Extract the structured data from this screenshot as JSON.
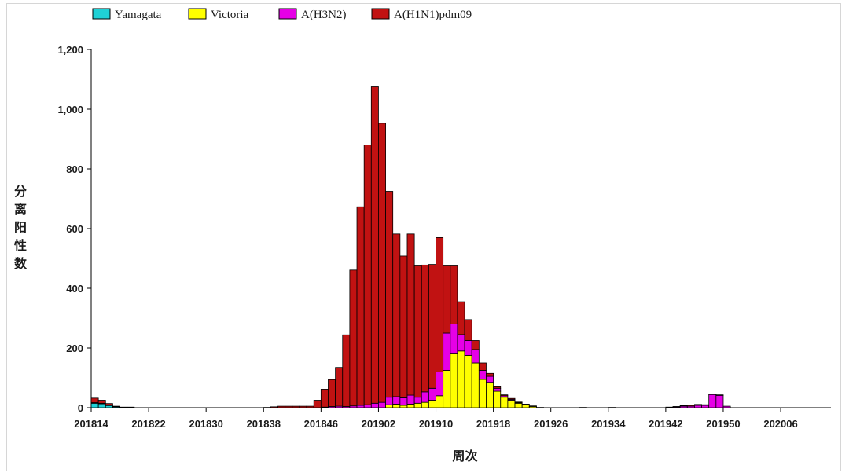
{
  "chart_data": {
    "type": "bar",
    "stacked": true,
    "xlabel": "周次",
    "ylabel": "分离阳性数",
    "ylim": [
      0,
      1200
    ],
    "yticks": [
      "0",
      "200",
      "400",
      "600",
      "800",
      "1,000",
      "1,200"
    ],
    "xtick_labels": [
      "201814",
      "201822",
      "201830",
      "201838",
      "201846",
      "201902",
      "201910",
      "201918",
      "201926",
      "201934",
      "201942",
      "201950",
      "202006"
    ],
    "legend_position": "top-left",
    "categories": [
      "201814",
      "201815",
      "201816",
      "201817",
      "201818",
      "201819",
      "201820",
      "201821",
      "201822",
      "201823",
      "201824",
      "201825",
      "201826",
      "201827",
      "201828",
      "201829",
      "201830",
      "201831",
      "201832",
      "201833",
      "201834",
      "201835",
      "201836",
      "201837",
      "201838",
      "201839",
      "201840",
      "201841",
      "201842",
      "201843",
      "201844",
      "201845",
      "201846",
      "201847",
      "201848",
      "201849",
      "201850",
      "201851",
      "201852",
      "201901",
      "201902",
      "201903",
      "201904",
      "201905",
      "201906",
      "201907",
      "201908",
      "201909",
      "201910",
      "201911",
      "201912",
      "201913",
      "201914",
      "201915",
      "201916",
      "201917",
      "201918",
      "201919",
      "201920",
      "201921",
      "201922",
      "201923",
      "201924",
      "201925",
      "201926",
      "201927",
      "201928",
      "201929",
      "201930",
      "201931",
      "201932",
      "201933",
      "201934",
      "201935",
      "201936",
      "201937",
      "201938",
      "201939",
      "201940",
      "201941",
      "201942",
      "201943",
      "201944",
      "201945",
      "201946",
      "201947",
      "201948",
      "201949",
      "201950",
      "201951",
      "201952",
      "202001",
      "202002",
      "202003",
      "202004",
      "202005",
      "202006",
      "202007",
      "202008",
      "202009",
      "202010",
      "202011",
      "202012"
    ],
    "series": [
      {
        "name": "Yamagata",
        "color": "#1fd1d6",
        "values": [
          15,
          14,
          8,
          3,
          1,
          1,
          0,
          0,
          0,
          0,
          0,
          0,
          0,
          0,
          0,
          0,
          0,
          0,
          0,
          0,
          0,
          0,
          0,
          0,
          0,
          0,
          0,
          0,
          0,
          0,
          0,
          0,
          0,
          0,
          0,
          0,
          0,
          0,
          0,
          0,
          0,
          0,
          0,
          0,
          0,
          0,
          0,
          0,
          0,
          0,
          0,
          0,
          0,
          0,
          0,
          0,
          0,
          0,
          0,
          0,
          0,
          0,
          0,
          0,
          0,
          0,
          0,
          0,
          0,
          0,
          0,
          0,
          0,
          0,
          0,
          0,
          0,
          0,
          0,
          0,
          0,
          0,
          0,
          0,
          0,
          0,
          0,
          0,
          0,
          0,
          0,
          0,
          0,
          0,
          0,
          0,
          0,
          0,
          0,
          0,
          0,
          0,
          0
        ]
      },
      {
        "name": "Victoria",
        "color": "#ffff00",
        "values": [
          0,
          0,
          0,
          0,
          0,
          0,
          0,
          0,
          0,
          0,
          0,
          0,
          0,
          0,
          0,
          0,
          0,
          0,
          0,
          0,
          0,
          0,
          0,
          0,
          0,
          0,
          0,
          0,
          0,
          0,
          0,
          0,
          0,
          0,
          0,
          0,
          0,
          0,
          0,
          0,
          0,
          10,
          12,
          8,
          12,
          15,
          18,
          25,
          40,
          125,
          180,
          190,
          175,
          150,
          95,
          85,
          55,
          35,
          25,
          15,
          10,
          5,
          1,
          0,
          0,
          0,
          0,
          0,
          0,
          0,
          0,
          0,
          0,
          0,
          0,
          0,
          0,
          0,
          0,
          0,
          0,
          0,
          0,
          0,
          0,
          0,
          0,
          0,
          0,
          0,
          0,
          0,
          0,
          0,
          0,
          0,
          0,
          0,
          0,
          0,
          0,
          0,
          0
        ]
      },
      {
        "name": "A(H3N2)",
        "color": "#e600e6",
        "values": [
          2,
          1,
          1,
          0,
          0,
          0,
          0,
          0,
          0,
          0,
          0,
          0,
          0,
          0,
          0,
          0,
          0,
          0,
          0,
          0,
          0,
          0,
          0,
          0,
          0,
          0,
          0,
          0,
          0,
          0,
          0,
          0,
          2,
          4,
          5,
          4,
          6,
          8,
          10,
          15,
          18,
          25,
          25,
          25,
          30,
          20,
          35,
          40,
          80,
          125,
          100,
          55,
          50,
          45,
          30,
          20,
          10,
          5,
          3,
          2,
          1,
          0,
          0,
          0,
          0,
          0,
          0,
          0,
          0,
          0,
          0,
          0,
          0,
          0,
          0,
          0,
          0,
          0,
          0,
          0,
          2,
          3,
          5,
          5,
          8,
          8,
          45,
          42,
          5,
          0,
          0,
          0,
          0,
          0,
          0,
          0,
          0,
          0,
          0,
          0,
          0,
          0,
          0
        ]
      },
      {
        "name": "A(H1N1)pdm09",
        "color": "#c11212",
        "values": [
          15,
          10,
          5,
          2,
          1,
          1,
          0,
          0,
          0,
          0,
          0,
          0,
          0,
          0,
          0,
          0,
          0,
          0,
          0,
          0,
          0,
          0,
          0,
          0,
          1,
          3,
          5,
          5,
          5,
          5,
          5,
          25,
          60,
          90,
          130,
          240,
          455,
          665,
          870,
          1060,
          935,
          690,
          545,
          475,
          540,
          440,
          425,
          415,
          450,
          225,
          195,
          110,
          70,
          30,
          25,
          10,
          5,
          3,
          3,
          2,
          1,
          1,
          0,
          0,
          0,
          0,
          0,
          0,
          1,
          0,
          0,
          0,
          1,
          0,
          0,
          0,
          0,
          0,
          0,
          0,
          0,
          1,
          2,
          3,
          3,
          2,
          1,
          1,
          0,
          0,
          0,
          0,
          0,
          0,
          0,
          0,
          0,
          0,
          0,
          0,
          0,
          0,
          0
        ]
      }
    ]
  }
}
